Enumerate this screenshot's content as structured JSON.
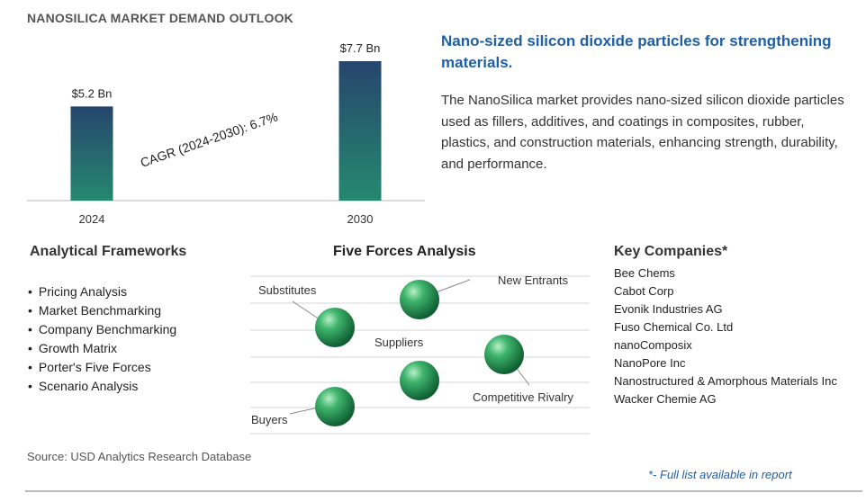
{
  "header": {
    "title": "NANOSILICA MARKET DEMAND OUTLOOK"
  },
  "chart_data": {
    "type": "bar",
    "categories": [
      "2024",
      "2030"
    ],
    "values": [
      5.2,
      7.7
    ],
    "value_labels": [
      "$5.2 Bn",
      "$7.7 Bn"
    ],
    "annotation": "CAGR (2024-2030):  6.7%",
    "ylim": [
      0,
      7.7
    ],
    "grid": false,
    "colors": {
      "bar_top": "#26456d",
      "bar_bottom": "#25896f"
    }
  },
  "summary": {
    "headline": "Nano-sized silicon dioxide particles for strengthening materials.",
    "description": "The NanoSilica market provides nano-sized silicon dioxide particles used as fillers, additives, and coatings in composites, rubber, plastics, and construction materials, enhancing strength, durability, and performance."
  },
  "frameworks": {
    "title": "Analytical Frameworks",
    "items": [
      "Pricing Analysis",
      "Market Benchmarking",
      "Company Benchmarking",
      "Growth Matrix",
      "Porter's Five Forces",
      "Scenario Analysis"
    ]
  },
  "five_forces": {
    "title": "Five Forces Analysis",
    "labels": {
      "substitutes": "Substitutes",
      "new_entrants": "New Entrants",
      "suppliers": "Suppliers",
      "competitive_rivalry": "Competitive Rivalry",
      "buyers": "Buyers"
    },
    "sphere_color": "#2e9e5e"
  },
  "companies": {
    "title": "Key Companies*",
    "items": [
      "Bee Chems",
      "Cabot Corp",
      "Evonik Industries AG",
      "Fuso Chemical Co. Ltd",
      "nanoComposix",
      "NanoPore Inc",
      "Nanostructured & Amorphous Materials Inc",
      "Wacker Chemie AG"
    ]
  },
  "footer": {
    "source": "Source: USD Analytics Research Database",
    "note": "*- Full list available in report"
  }
}
